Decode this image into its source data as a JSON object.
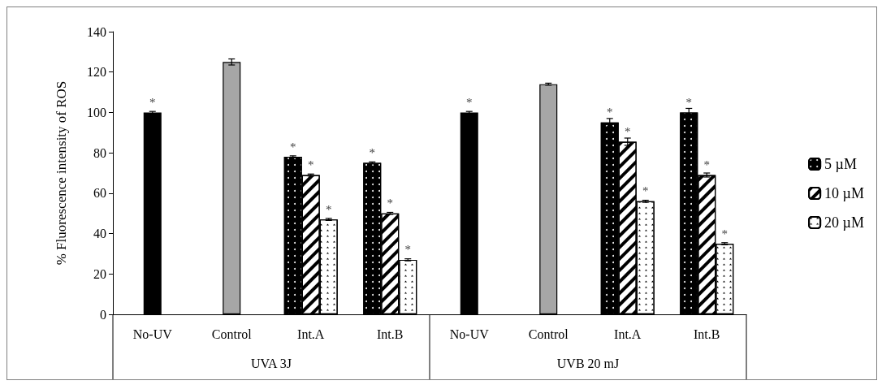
{
  "chart_data": {
    "type": "bar",
    "ylabel": "% Fluorescence intensity of ROS",
    "categories": [
      "No-UV",
      "Control",
      "Int.A",
      "Int.B",
      "No-UV",
      "Control",
      "Int.A",
      "Int.B"
    ],
    "series": [
      {
        "color": "#000000",
        "values": [
          100,
          null,
          null,
          null,
          100,
          null,
          null,
          null
        ],
        "errors": [
          0.5,
          null,
          null,
          null,
          0.5,
          null,
          null,
          null
        ],
        "value_labels": [
          "*",
          null,
          null,
          null,
          "*",
          null,
          null,
          null
        ]
      },
      {
        "color": "#a6a6a6",
        "values": [
          null,
          125,
          null,
          null,
          null,
          114,
          null,
          null
        ],
        "errors": [
          null,
          1.5,
          null,
          null,
          null,
          0.5,
          null,
          null
        ],
        "value_labels": [
          null,
          null,
          null,
          null,
          null,
          null,
          null,
          null
        ]
      },
      {
        "name": "5 µM",
        "color": "#000000",
        "values": [
          null,
          null,
          78,
          75,
          null,
          null,
          95,
          100
        ],
        "errors": [
          null,
          null,
          0.5,
          0.5,
          null,
          null,
          2,
          2
        ],
        "value_labels": [
          null,
          null,
          "*",
          "*",
          null,
          null,
          "*",
          "*"
        ]
      },
      {
        "name": "10 µM",
        "color": "#ffffff",
        "values": [
          null,
          null,
          69,
          50,
          null,
          null,
          85.5,
          69
        ],
        "errors": [
          null,
          null,
          0.5,
          0.5,
          null,
          null,
          1.8,
          1
        ],
        "value_labels": [
          null,
          null,
          "*",
          "*",
          null,
          null,
          "*",
          "*"
        ]
      },
      {
        "name": "20 µM",
        "color": "#ffffff",
        "values": [
          null,
          null,
          47,
          27,
          null,
          null,
          56,
          35
        ],
        "errors": [
          null,
          null,
          0.5,
          0.5,
          null,
          null,
          0.5,
          0.5
        ],
        "value_labels": [
          null,
          null,
          "*",
          "*",
          null,
          null,
          "*",
          "*"
        ]
      }
    ],
    "ylim": [
      0,
      140
    ],
    "yticks": [
      0,
      20,
      40,
      60,
      80,
      100,
      120,
      140
    ],
    "grid": false,
    "legend": "right",
    "annotations": [
      "UVA 3J",
      "UVB 20 mJ"
    ]
  }
}
